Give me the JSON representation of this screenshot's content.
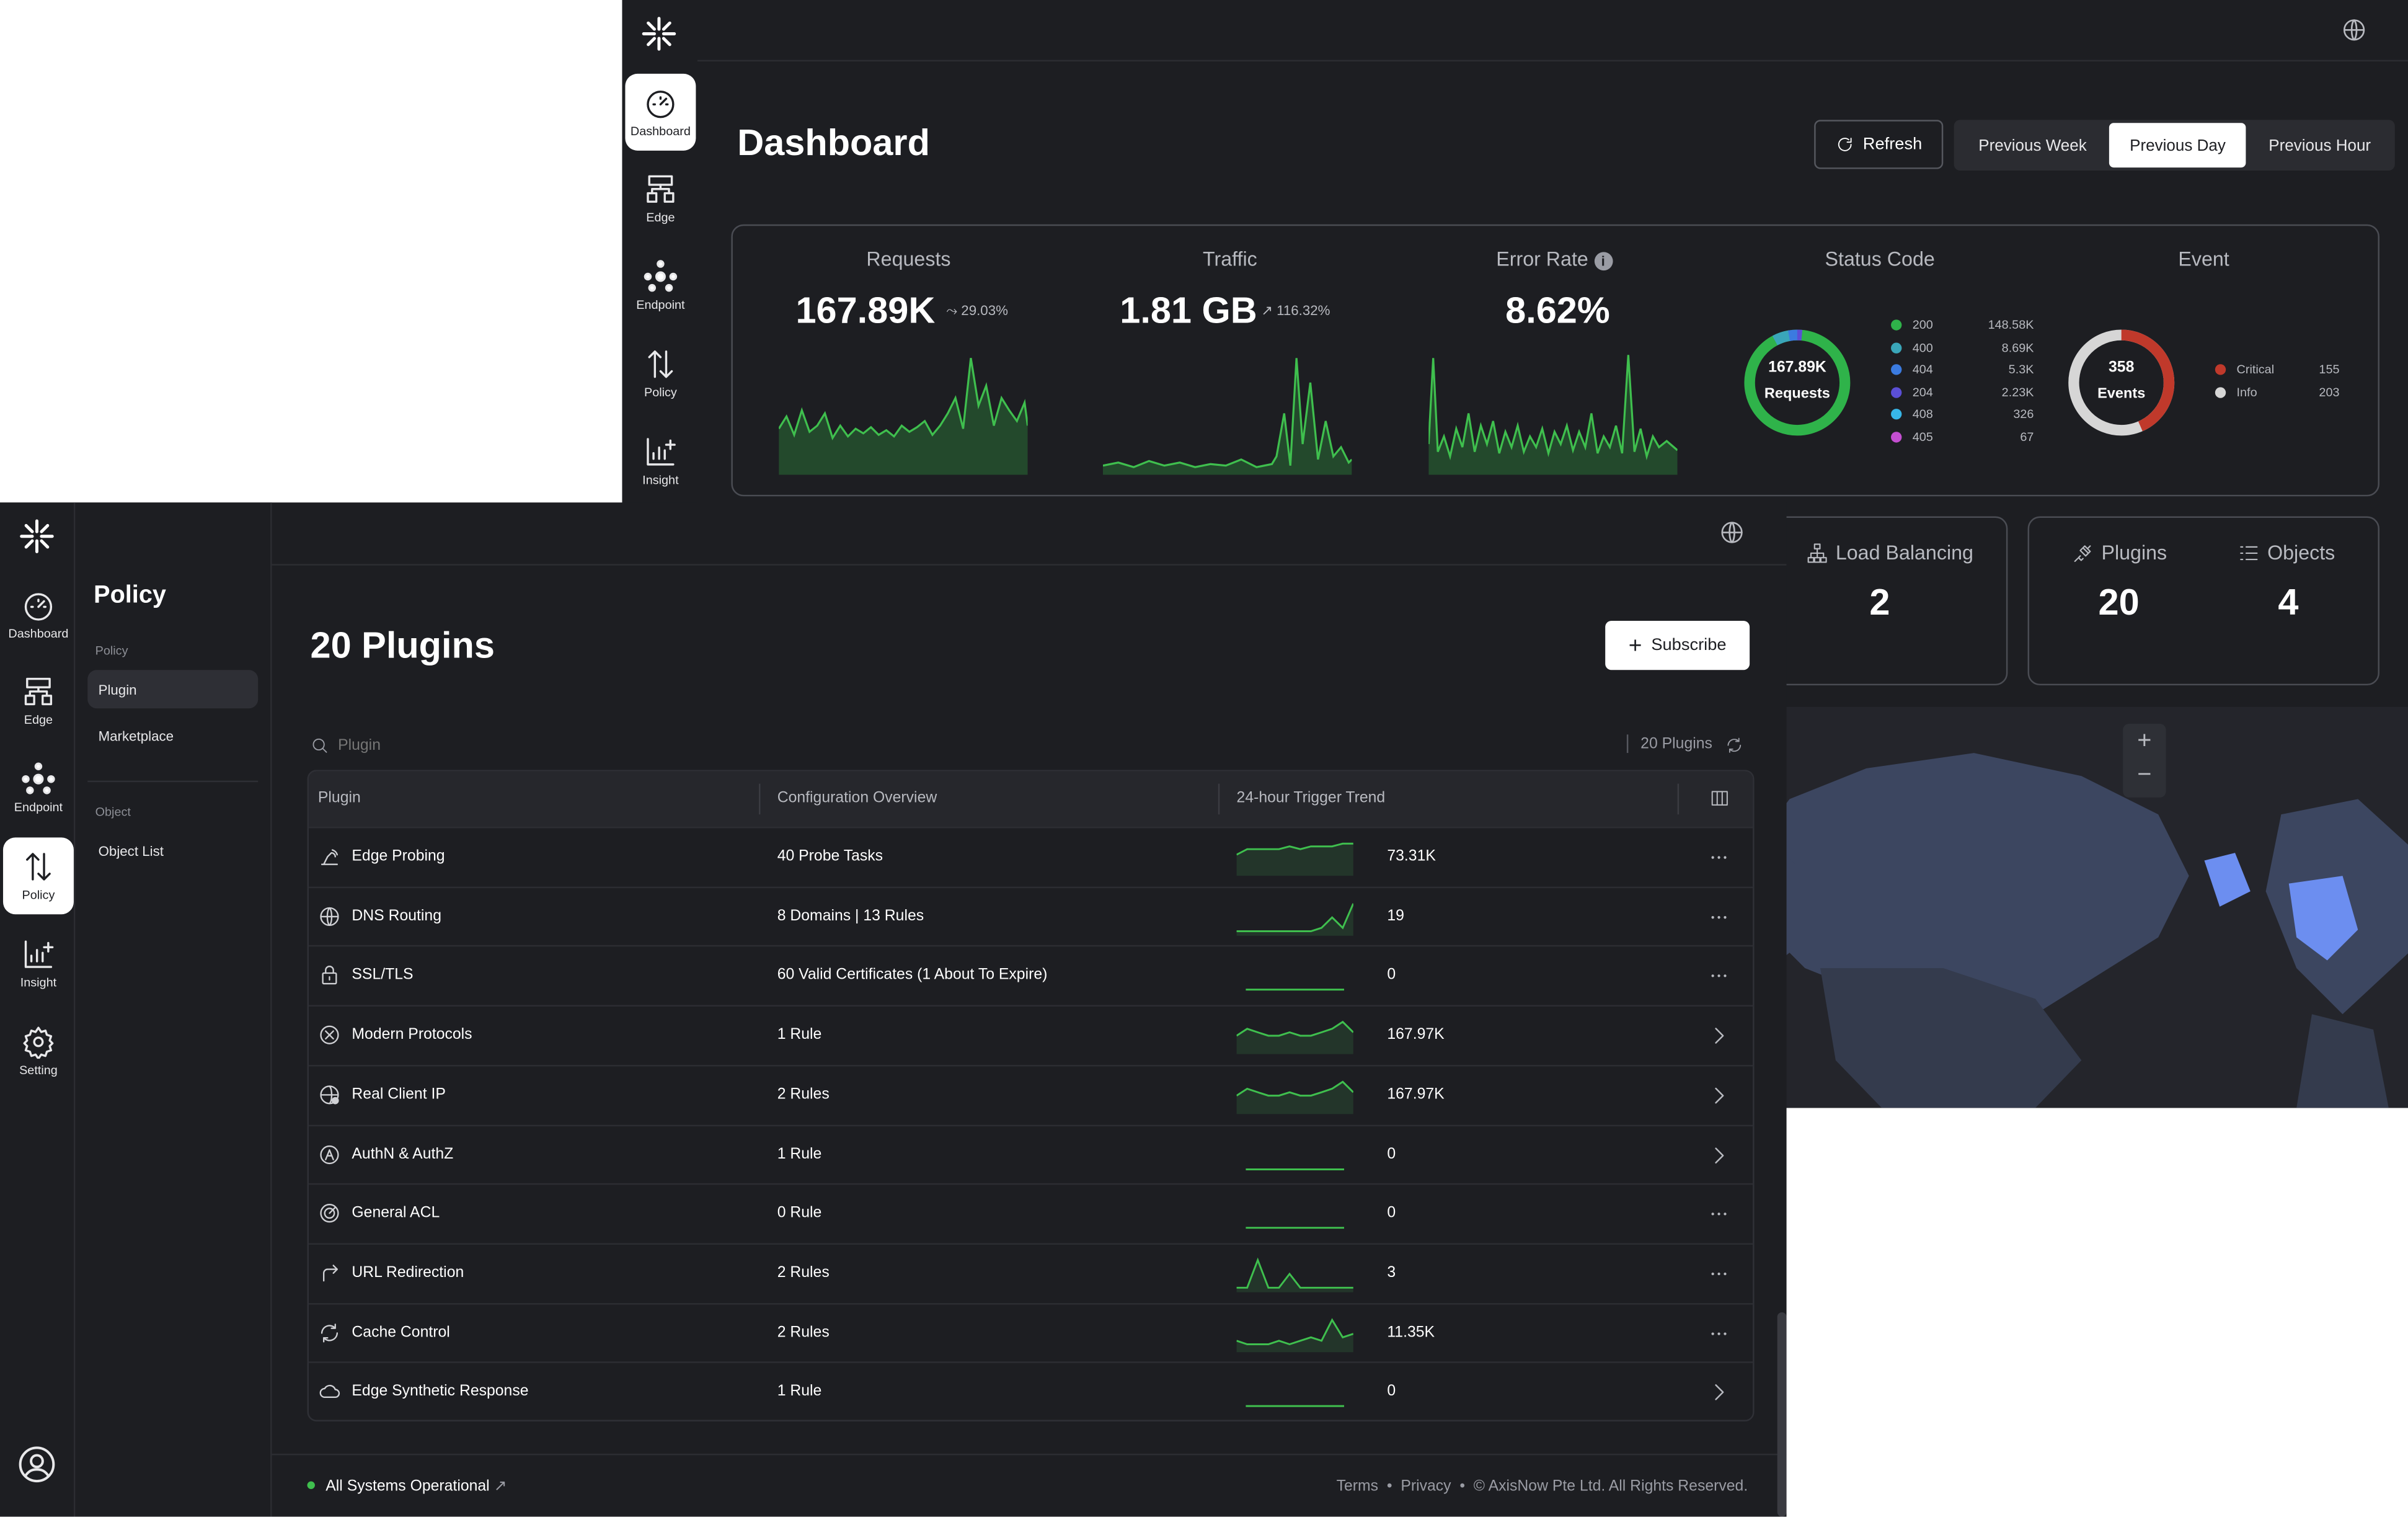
{
  "dashboard": {
    "title": "Dashboard",
    "refresh_label": "Refresh",
    "ranges": [
      "Previous Week",
      "Previous Day",
      "Previous Hour"
    ],
    "selected_range": "Previous Day",
    "nav": [
      {
        "label": "Dashboard",
        "icon": "gauge-icon",
        "active": true
      },
      {
        "label": "Edge",
        "icon": "edge-icon"
      },
      {
        "label": "Endpoint",
        "icon": "endpoint-icon"
      },
      {
        "label": "Policy",
        "icon": "policy-icon"
      },
      {
        "label": "Insight",
        "icon": "insight-icon"
      }
    ],
    "metrics": {
      "requests": {
        "title": "Requests",
        "value": "167.89K",
        "delta": "29.03%"
      },
      "traffic": {
        "title": "Traffic",
        "value": "1.81 GB",
        "delta": "116.32%"
      },
      "error_rate": {
        "title": "Error Rate",
        "value": "8.62%"
      }
    },
    "status_code": {
      "title": "Status Code",
      "center_value": "167.89K",
      "center_label": "Requests",
      "items": [
        {
          "code": "200",
          "count": "148.58K",
          "color": "#2fb34a"
        },
        {
          "code": "400",
          "count": "8.69K",
          "color": "#3aa6b9"
        },
        {
          "code": "404",
          "count": "5.3K",
          "color": "#3b7be0"
        },
        {
          "code": "204",
          "count": "2.23K",
          "color": "#5b4fd6"
        },
        {
          "code": "408",
          "count": "326",
          "color": "#37b6e8"
        },
        {
          "code": "405",
          "count": "67",
          "color": "#c44fd1"
        }
      ]
    },
    "event": {
      "title": "Event",
      "center_value": "358",
      "center_label": "Events",
      "items": [
        {
          "label": "Critical",
          "count": "155",
          "color": "#c0392b"
        },
        {
          "label": "Info",
          "count": "203",
          "color": "#d6d6d6"
        }
      ]
    },
    "load_balancing": {
      "label": "Load Balancing",
      "value": "2"
    },
    "plugins": {
      "label": "Plugins",
      "value": "20"
    },
    "objects": {
      "label": "Objects",
      "value": "4"
    },
    "map_zoom_in": "+",
    "map_zoom_out": "−"
  },
  "policy": {
    "nav": [
      {
        "label": "Dashboard"
      },
      {
        "label": "Edge"
      },
      {
        "label": "Endpoint"
      },
      {
        "label": "Policy",
        "active": true
      },
      {
        "label": "Insight"
      },
      {
        "label": "Setting"
      }
    ],
    "sidebar": {
      "title": "Policy",
      "group1": "Policy",
      "items1": [
        "Plugin",
        "Marketplace"
      ],
      "group2": "Object",
      "items2": [
        "Object List"
      ]
    },
    "page_title": "20 Plugins",
    "subscribe_label": "Subscribe",
    "search_placeholder": "Plugin",
    "count_label": "20 Plugins",
    "columns": [
      "Plugin",
      "Configuration Overview",
      "24-hour Trigger Trend"
    ],
    "rows": [
      {
        "name": "Edge Probing",
        "icon": "probe-icon",
        "config": "40 Probe Tasks",
        "count": "73.31K",
        "action": "more",
        "trend": [
          6,
          8,
          8,
          8,
          8,
          9,
          8,
          9,
          9,
          9,
          10,
          10
        ]
      },
      {
        "name": "DNS Routing",
        "icon": "globe-icon",
        "config": "8 Domains | 13 Rules",
        "count": "19",
        "action": "more",
        "trend": [
          0,
          0,
          0,
          0,
          0,
          0,
          0,
          0,
          1,
          4,
          1,
          8
        ]
      },
      {
        "name": "SSL/TLS",
        "icon": "lock-icon",
        "config": "60 Valid Certificates (1 About To Expire)",
        "count": "0",
        "action": "more",
        "trend": [
          0,
          0,
          0,
          0,
          0,
          0,
          0,
          0,
          0,
          0,
          0,
          0
        ]
      },
      {
        "name": "Modern Protocols",
        "icon": "protocol-icon",
        "config": "1 Rule",
        "count": "167.97K",
        "action": "chevron",
        "trend": [
          4,
          6,
          5,
          4,
          4,
          5,
          4,
          4,
          5,
          6,
          8,
          5
        ]
      },
      {
        "name": "Real Client IP",
        "icon": "client-ip-icon",
        "config": "2 Rules",
        "count": "167.97K",
        "action": "chevron",
        "trend": [
          4,
          6,
          5,
          4,
          4,
          5,
          4,
          4,
          5,
          6,
          8,
          5
        ]
      },
      {
        "name": "AuthN & AuthZ",
        "icon": "auth-icon",
        "config": "1 Rule",
        "count": "0",
        "action": "chevron",
        "trend": [
          0,
          0,
          0,
          0,
          0,
          0,
          0,
          0,
          0,
          0,
          0,
          0
        ]
      },
      {
        "name": "General ACL",
        "icon": "acl-icon",
        "config": "0 Rule",
        "count": "0",
        "action": "more",
        "trend": [
          0,
          0,
          0,
          0,
          0,
          0,
          0,
          0,
          0,
          0,
          0,
          0
        ]
      },
      {
        "name": "URL Redirection",
        "icon": "redirect-icon",
        "config": "2 Rules",
        "count": "3",
        "action": "more",
        "trend": [
          0,
          0,
          2,
          0,
          0,
          1,
          0,
          0,
          0,
          0,
          0,
          0
        ]
      },
      {
        "name": "Cache Control",
        "icon": "cache-icon",
        "config": "2 Rules",
        "count": "11.35K",
        "action": "more",
        "trend": [
          2,
          1,
          1,
          1,
          2,
          1,
          2,
          3,
          2,
          8,
          3,
          4
        ]
      },
      {
        "name": "Edge Synthetic Response",
        "icon": "cloud-icon",
        "config": "1 Rule",
        "count": "0",
        "action": "chevron",
        "trend": [
          0,
          0,
          0,
          0,
          0,
          0,
          0,
          0,
          0,
          0,
          0,
          0
        ]
      }
    ],
    "status_text": "All Systems Operational",
    "footer": {
      "terms": "Terms",
      "privacy": "Privacy",
      "copyright": "© AxisNow Pte Ltd. All Rights Reserved."
    }
  }
}
